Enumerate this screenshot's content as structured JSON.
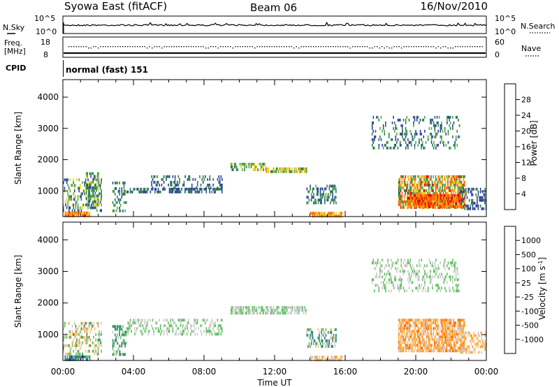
{
  "header": {
    "station": "Syowa East (fitACF)",
    "beam": "Beam 06",
    "date": "16/Nov/2010"
  },
  "summary": {
    "nsky_label": "N.Sky",
    "nsearch_label": "N.Search",
    "noise_ticks": [
      "10^5",
      "10^0"
    ],
    "freq_label_1": "Freq.",
    "freq_label_2": "[MHz]",
    "freq_ticks": [
      "18",
      "8"
    ],
    "nave_label": "Nave",
    "nave_ticks": [
      "60",
      "0"
    ],
    "cpid_label": "CPID",
    "cpid_value": "normal (fast) 151"
  },
  "colors": {
    "power": [
      "#1a1aff",
      "#2a3f9d",
      "#2f7a4e",
      "#4ca84c",
      "#e8d020",
      "#ff9900",
      "#ff5a00",
      "#e60000"
    ],
    "velocity": [
      "#1a1a9e",
      "#2a6e9d",
      "#2f8a5e",
      "#5ec25e",
      "#c8c8c8",
      "#ffc070",
      "#ff9a20",
      "#ff6a00",
      "#e60000"
    ]
  },
  "chart_data": [
    {
      "type": "heatmap",
      "panel": "power",
      "ylabel": "Slant Range [km]",
      "xlabel": "",
      "x_ticks": [
        "00:00",
        "04:00",
        "08:00",
        "12:00",
        "16:00",
        "20:00",
        "00:00"
      ],
      "x_range_hours": [
        0,
        24
      ],
      "y_ticks": [
        1000,
        2000,
        3000,
        4000
      ],
      "ylim": [
        180,
        4560
      ],
      "colorbar": {
        "label": "Power [dB]",
        "ticks": [
          "4",
          "8",
          "12",
          "16",
          "20",
          "24",
          "28"
        ],
        "range": [
          0,
          32
        ]
      },
      "regions": [
        {
          "t0": 0.1,
          "t1": 1.5,
          "r0": 200,
          "r1": 340,
          "v0": 18,
          "v1": 30,
          "density": 0.9
        },
        {
          "t0": 0.0,
          "t1": 2.2,
          "r0": 400,
          "r1": 1400,
          "v0": 4,
          "v1": 20,
          "density": 0.4
        },
        {
          "t0": 1.3,
          "t1": 2.0,
          "r0": 600,
          "r1": 1600,
          "v0": 6,
          "v1": 18,
          "density": 0.6
        },
        {
          "t0": 2.8,
          "t1": 3.6,
          "r0": 400,
          "r1": 1300,
          "v0": 4,
          "v1": 16,
          "density": 0.4
        },
        {
          "t0": 3.6,
          "t1": 9.0,
          "r0": 1000,
          "r1": 1100,
          "v0": 4,
          "v1": 12,
          "density": 0.6
        },
        {
          "t0": 5.0,
          "t1": 9.0,
          "r0": 1100,
          "r1": 1500,
          "v0": 4,
          "v1": 12,
          "density": 0.3
        },
        {
          "t0": 9.5,
          "t1": 11.5,
          "r0": 1700,
          "r1": 1900,
          "v0": 8,
          "v1": 20,
          "density": 0.6
        },
        {
          "t0": 11.5,
          "t1": 13.8,
          "r0": 1650,
          "r1": 1750,
          "v0": 10,
          "v1": 22,
          "density": 0.8
        },
        {
          "t0": 13.8,
          "t1": 15.5,
          "r0": 600,
          "r1": 1200,
          "v0": 4,
          "v1": 16,
          "density": 0.45
        },
        {
          "t0": 14.0,
          "t1": 15.8,
          "r0": 220,
          "r1": 330,
          "v0": 16,
          "v1": 28,
          "density": 0.8
        },
        {
          "t0": 17.5,
          "t1": 22.5,
          "r0": 2400,
          "r1": 3400,
          "v0": 4,
          "v1": 14,
          "density": 0.25
        },
        {
          "t0": 19.0,
          "t1": 22.8,
          "r0": 500,
          "r1": 1500,
          "v0": 8,
          "v1": 30,
          "density": 0.75
        },
        {
          "t0": 19.5,
          "t1": 22.6,
          "r0": 500,
          "r1": 900,
          "v0": 20,
          "v1": 31,
          "density": 0.9
        },
        {
          "t0": 22.5,
          "t1": 24.0,
          "r0": 400,
          "r1": 1100,
          "v0": 4,
          "v1": 12,
          "density": 0.4
        }
      ]
    },
    {
      "type": "heatmap",
      "panel": "velocity",
      "ylabel": "Slant Range [km]",
      "xlabel": "Time UT",
      "x_ticks": [
        "00:00",
        "04:00",
        "08:00",
        "12:00",
        "16:00",
        "20:00",
        "00:00"
      ],
      "x_range_hours": [
        0,
        24
      ],
      "y_ticks": [
        1000,
        2000,
        3000,
        4000
      ],
      "ylim": [
        180,
        4560
      ],
      "colorbar": {
        "label": "Velocity [m s^-1]",
        "ticks": [
          "1000",
          "500",
          "100",
          "25",
          "-25",
          "-100",
          "-500",
          "-1000"
        ]
      },
      "regions": [
        {
          "t0": 0.1,
          "t1": 1.5,
          "r0": 200,
          "r1": 340,
          "v0": 5,
          "v1": 8,
          "density": 0.9
        },
        {
          "t0": 0.0,
          "t1": 2.2,
          "r0": 400,
          "r1": 1400,
          "v0": 2,
          "v1": 6,
          "density": 0.4
        },
        {
          "t0": 2.8,
          "t1": 3.6,
          "r0": 400,
          "r1": 1300,
          "v0": 4,
          "v1": 7,
          "density": 0.45
        },
        {
          "t0": 3.6,
          "t1": 9.0,
          "r0": 1000,
          "r1": 1500,
          "v0": 4,
          "v1": 5,
          "density": 0.4
        },
        {
          "t0": 9.5,
          "t1": 13.8,
          "r0": 1650,
          "r1": 1900,
          "v0": 4,
          "v1": 5,
          "density": 0.7
        },
        {
          "t0": 13.8,
          "t1": 15.5,
          "r0": 600,
          "r1": 1200,
          "v0": 3,
          "v1": 7,
          "density": 0.45
        },
        {
          "t0": 14.0,
          "t1": 15.8,
          "r0": 220,
          "r1": 330,
          "v0": 2,
          "v1": 4,
          "density": 0.7
        },
        {
          "t0": 17.5,
          "t1": 22.5,
          "r0": 2400,
          "r1": 3400,
          "v0": 4,
          "v1": 5,
          "density": 0.3
        },
        {
          "t0": 19.0,
          "t1": 22.8,
          "r0": 500,
          "r1": 1500,
          "v0": 1,
          "v1": 4,
          "density": 0.75
        },
        {
          "t0": 22.5,
          "t1": 24.0,
          "r0": 400,
          "r1": 1100,
          "v0": 2,
          "v1": 4,
          "density": 0.4
        }
      ]
    }
  ]
}
